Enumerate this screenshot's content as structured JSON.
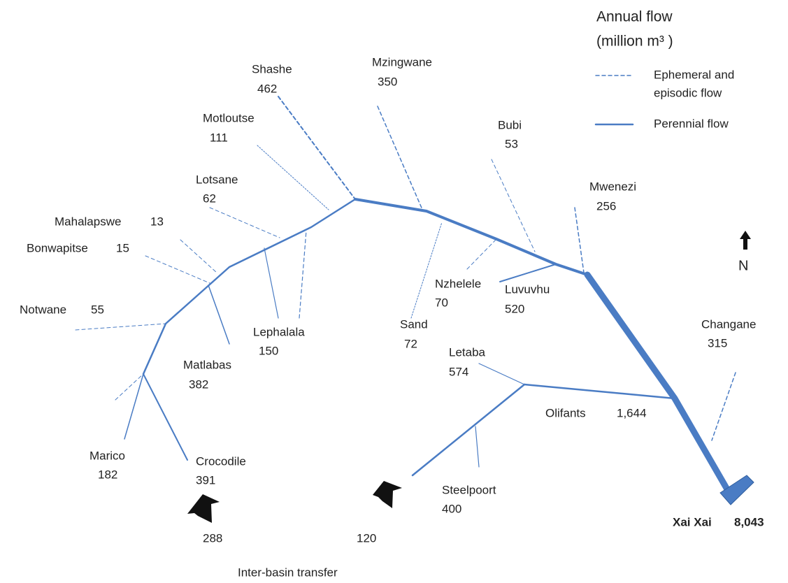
{
  "legend": {
    "title": "Annual flow",
    "unit": "(million m³ )",
    "items": [
      "Ephemeral and",
      "episodic flow",
      "Perennial flow"
    ]
  },
  "rivers": [
    {
      "name": "Shashe",
      "flow": 462
    },
    {
      "name": "Mzingwane",
      "flow": 350
    },
    {
      "name": "Motloutse",
      "flow": 111
    },
    {
      "name": "Bubi",
      "flow": 53
    },
    {
      "name": "Mwenezi",
      "flow": 256
    },
    {
      "name": "Lotsane",
      "flow": 62
    },
    {
      "name": "Mahalapswe",
      "flow": 13
    },
    {
      "name": "Bonwapitse",
      "flow": 15
    },
    {
      "name": "Notwane",
      "flow": 55
    },
    {
      "name": "Nzhelele",
      "flow": 70
    },
    {
      "name": "Luvuvhu",
      "flow": 520
    },
    {
      "name": "Lephalala",
      "flow": 150
    },
    {
      "name": "Sand",
      "flow": 72
    },
    {
      "name": "Changane",
      "flow": 315
    },
    {
      "name": "Matlabas",
      "flow": 382
    },
    {
      "name": "Letaba",
      "flow": 574
    },
    {
      "name": "Olifants",
      "flow": {
        "value": 1644,
        "label": "1,644"
      }
    },
    {
      "name": "Marico",
      "flow": 182
    },
    {
      "name": "Crocodile",
      "flow": 391
    },
    {
      "name": "Steelpoort",
      "flow": 400
    },
    {
      "name": "Xai Xai",
      "flow": {
        "value": 8043,
        "label": "8,043"
      }
    }
  ],
  "transfers": {
    "values": [
      288,
      120
    ],
    "label": "Inter-basin transfer"
  },
  "north": "N"
}
